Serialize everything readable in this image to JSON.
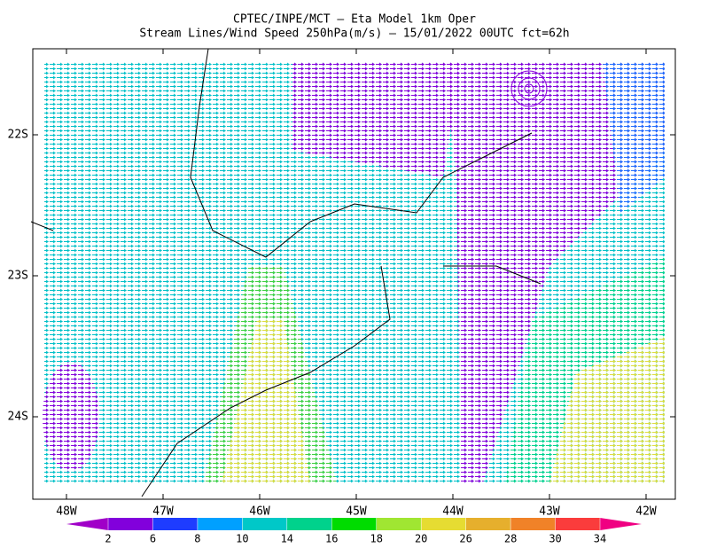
{
  "header": {
    "title": "CPTEC/INPE/MCT —  Eta Model 1km Oper",
    "subtitle": "Stream Lines/Wind Speed 250hPa(m/s) — 15/01/2022 00UTC fct=62h"
  },
  "map": {
    "lat_labels": [
      "22S",
      "23S",
      "24S"
    ],
    "lon_labels": [
      "48W",
      "47W",
      "46W",
      "45W",
      "44W",
      "43W",
      "42W"
    ]
  },
  "colorbar": {
    "levels": [
      2,
      6,
      8,
      10,
      14,
      16,
      18,
      20,
      26,
      28,
      30,
      34
    ],
    "colors": [
      "#a000c8",
      "#8200dc",
      "#1e3cff",
      "#00a0ff",
      "#00c8c8",
      "#00d28c",
      "#00dc00",
      "#a0e632",
      "#e6dc32",
      "#e6af2d",
      "#f08228",
      "#fa3c3c",
      "#f00082"
    ]
  }
}
